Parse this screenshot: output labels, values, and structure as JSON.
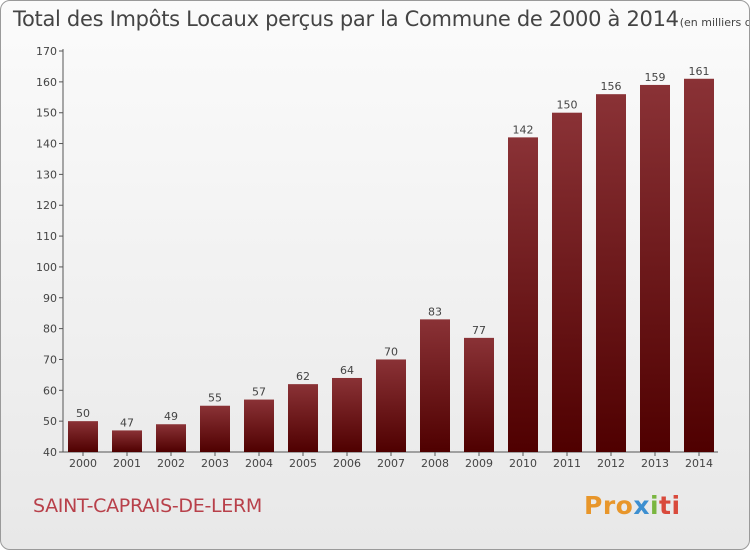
{
  "title": "Total des Impôts Locaux perçus par la Commune de 2000 à 2014",
  "unit_note": "(en milliers d'€)",
  "commune": "SAINT-CAPRAIS-DE-LERM",
  "logo": {
    "p1": "Pro",
    "p2": "x",
    "p3": "i",
    "p4": "ti"
  },
  "colors": {
    "bar_top": "#8a3236",
    "bar_bottom": "#4f0000",
    "commune_text": "#b8404a"
  },
  "chart_data": {
    "type": "bar",
    "categories": [
      "2000",
      "2001",
      "2002",
      "2003",
      "2004",
      "2005",
      "2006",
      "2007",
      "2008",
      "2009",
      "2010",
      "2011",
      "2012",
      "2013",
      "2014"
    ],
    "values": [
      50,
      47,
      49,
      55,
      57,
      62,
      64,
      70,
      83,
      77,
      142,
      150,
      156,
      159,
      161
    ],
    "ylim": [
      40,
      170
    ],
    "yticks": [
      40,
      50,
      60,
      70,
      80,
      90,
      100,
      110,
      120,
      130,
      140,
      150,
      160,
      170
    ],
    "grid": false,
    "legend": "none"
  }
}
